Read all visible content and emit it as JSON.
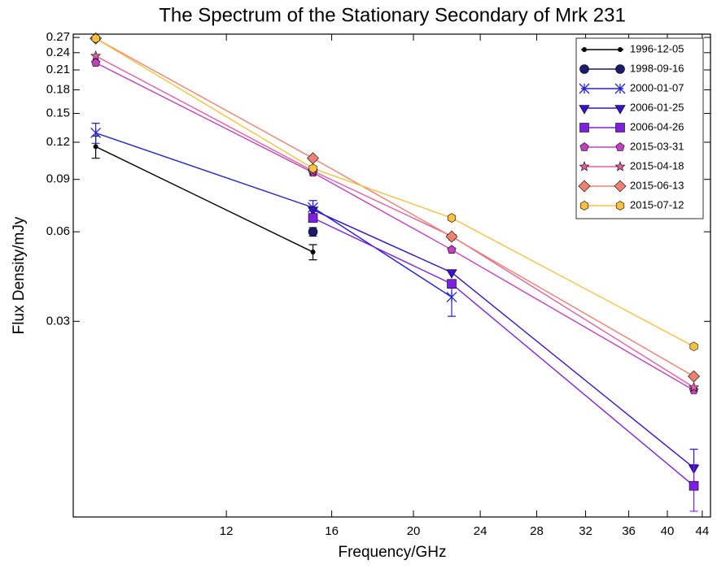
{
  "chart_data": {
    "type": "line",
    "title": "The Spectrum of the Stationary Secondary of Mrk 231",
    "x_label": "Frequency/GHz",
    "y_label": "Flux Density/mJy",
    "log_x": true,
    "log_y": true,
    "grid": false,
    "legend_position": "top-right",
    "x": [
      8.4,
      15.2,
      22.2,
      43.0
    ],
    "xlim": [
      7.9,
      45
    ],
    "xticks": [
      12,
      16,
      20,
      24,
      28,
      32,
      36,
      40,
      44
    ],
    "ylim": [
      0.0066,
      0.277
    ],
    "yticks": [
      0.03,
      0.06,
      0.09,
      0.12,
      0.15,
      0.18,
      0.21,
      0.24,
      0.27
    ],
    "series": [
      {
        "name": "1996-12-05",
        "color": "#000000",
        "marker": "dot",
        "values": [
          0.116,
          0.0513,
          null,
          null
        ],
        "errors": [
          0.01,
          0.003,
          null,
          null
        ]
      },
      {
        "name": "1998-09-16",
        "color": "#1a1a6e",
        "marker": "circle",
        "values": [
          null,
          0.06,
          null,
          null
        ],
        "errors": [
          null,
          0.002,
          null,
          null
        ]
      },
      {
        "name": "2000-01-07",
        "color": "#2222d0",
        "marker": "x",
        "values": [
          0.129,
          0.0724,
          0.0362,
          null
        ],
        "errors": [
          0.01,
          0.004,
          0.005,
          null
        ]
      },
      {
        "name": "2006-01-25",
        "color": "#3a10c8",
        "marker": "triangle",
        "values": [
          null,
          0.0711,
          0.0438,
          0.00965
        ],
        "errors": [
          null,
          null,
          null,
          0.0015
        ]
      },
      {
        "name": "2006-04-26",
        "color": "#7f1fe0",
        "marker": "square",
        "values": [
          null,
          0.0668,
          0.0401,
          0.0084
        ],
        "errors": [
          null,
          null,
          null,
          0.0015
        ]
      },
      {
        "name": "2015-03-31",
        "color": "#c040c0",
        "marker": "pentagon",
        "values": [
          0.222,
          0.0949,
          0.0522,
          0.0176
        ]
      },
      {
        "name": "2015-04-18",
        "color": "#e060a0",
        "marker": "star",
        "values": [
          0.234,
          0.096,
          0.058,
          0.018
        ]
      },
      {
        "name": "2015-06-13",
        "color": "#f08070",
        "marker": "diamond",
        "values": [
          0.268,
          0.106,
          0.0578,
          0.0196
        ]
      },
      {
        "name": "2015-07-12",
        "color": "#f8c040",
        "marker": "hexagon",
        "values": [
          0.268,
          0.098,
          0.0668,
          0.0247
        ]
      }
    ]
  }
}
